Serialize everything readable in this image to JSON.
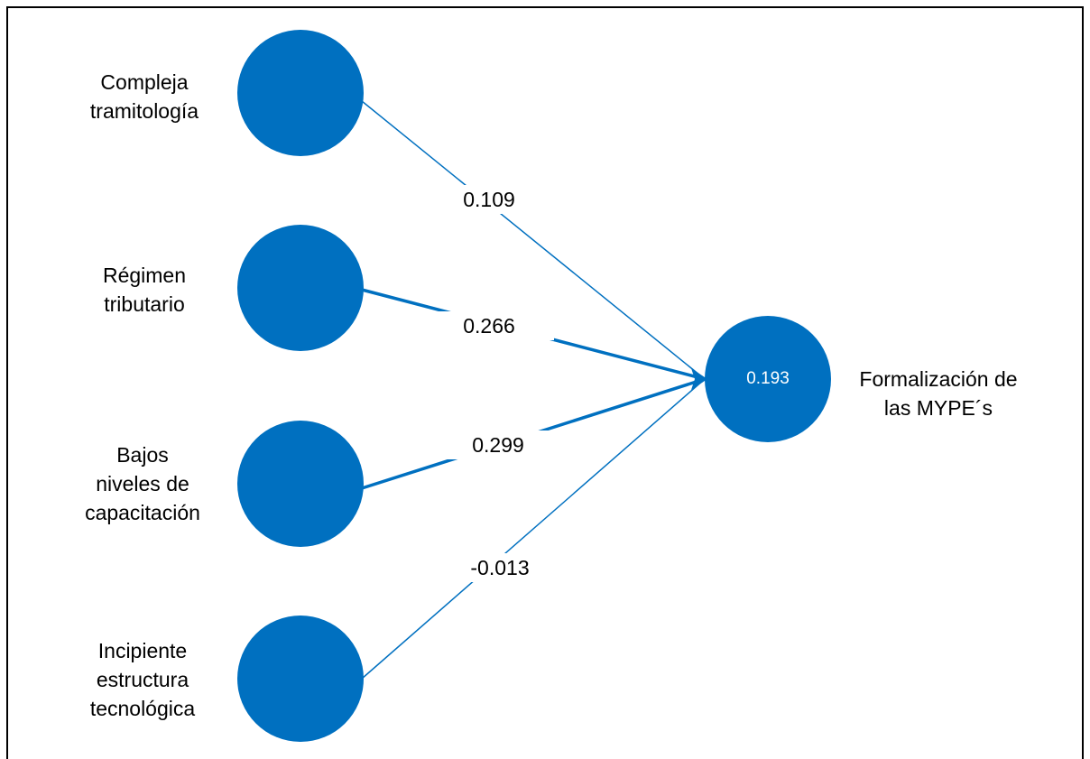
{
  "diagram": {
    "colors": {
      "node_fill": "#0070C0",
      "edge": "#0070C0",
      "border": "#000000",
      "target_value_text": "#ffffff"
    },
    "predictors": [
      {
        "id": "compleja",
        "label_lines": [
          "Compleja",
          "tramitología"
        ],
        "coefficient": "0.109"
      },
      {
        "id": "regimen",
        "label_lines": [
          "Régimen",
          "tributario"
        ],
        "coefficient": "0.266"
      },
      {
        "id": "bajos",
        "label_lines": [
          "Bajos",
          "niveles de",
          "capacitación"
        ],
        "coefficient": "0.299"
      },
      {
        "id": "incipiente",
        "label_lines": [
          "Incipiente",
          "estructura",
          "tecnológica"
        ],
        "coefficient": "-0.013"
      }
    ],
    "target": {
      "label_lines": [
        "Formalización de",
        "las MYPE´s"
      ],
      "r_squared": "0.193"
    }
  }
}
